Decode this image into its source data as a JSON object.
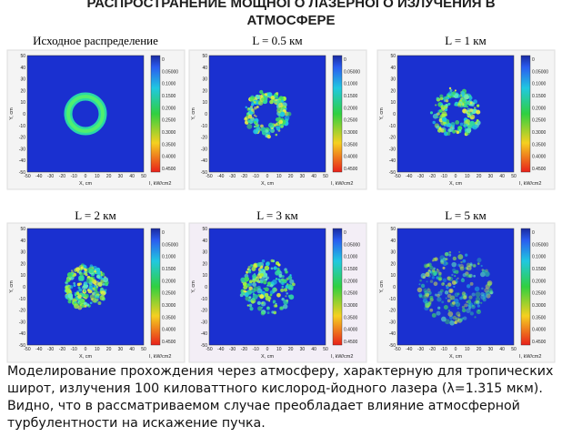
{
  "header": {
    "title_line1": "РАСПРОСТРАНЕНИЕ МОЩНОГО ЛАЗЕРНОГО ИЗЛУЧЕНИЯ В",
    "title_line2": "АТМОСФЕРЕ"
  },
  "panels": [
    {
      "label": "Исходное распределение"
    },
    {
      "label": "L = 0.5 км"
    },
    {
      "label": "L = 1 км"
    },
    {
      "label": "L = 2 км"
    },
    {
      "label": "L = 3 км"
    },
    {
      "label": "L = 5 км"
    }
  ],
  "axes": {
    "xticks": [
      -50,
      -40,
      -30,
      -20,
      -10,
      0,
      10,
      20,
      30,
      40,
      50
    ],
    "yticks": [
      50,
      40,
      30,
      20,
      10,
      0,
      -10,
      -20,
      -30,
      -40,
      -50
    ],
    "xlabel": "X, cm",
    "ylabel": "Y, cm",
    "colorbar_label": "I, kW/cm2",
    "colorbar_ticks": [
      "0",
      "0.05000",
      "0.1000",
      "0.1500",
      "0.2000",
      "0.2500",
      "0.3000",
      "0.3500",
      "0.4000",
      "0.4500"
    ]
  },
  "caption": "Моделирование прохождения через атмосферу, характерную для тропических широт, излучения 100 киловаттного кислород-йодного лазера (λ=1.315 мкм). Видно, что в рассматриваемом случае преобладает влияние атмосферной турбулентности на искажение пучка."
}
